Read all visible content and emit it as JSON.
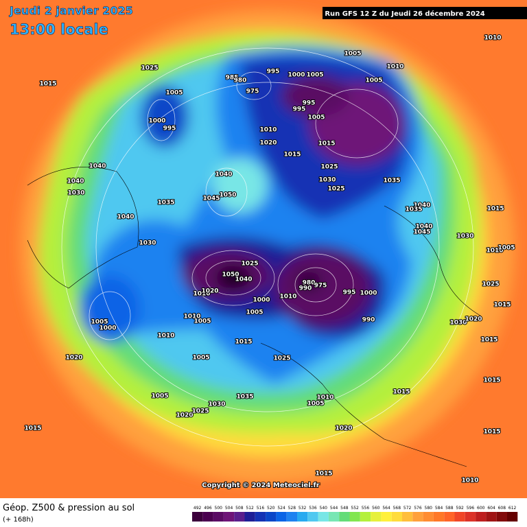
{
  "header": {
    "date": "Jeudi 2 janvier 2025",
    "time": "13:00 locale",
    "run": "Run GFS 12 Z du Jeudi 26 décembre 2024"
  },
  "footer": {
    "title": "Géop. Z500 & pression au sol",
    "lead": "(+ 168h)",
    "copyright": "Copyright © 2024 Meteociel.fr"
  },
  "scale": {
    "ticks": [
      492,
      496,
      500,
      504,
      508,
      512,
      516,
      520,
      524,
      528,
      532,
      536,
      540,
      544,
      548,
      552,
      556,
      560,
      564,
      568,
      572,
      576,
      580,
      584,
      588,
      592,
      596,
      600,
      604,
      608,
      612
    ],
    "colors": [
      "#3c003c",
      "#4b0050",
      "#5a0a64",
      "#6e1478",
      "#5a1e8c",
      "#1e1e96",
      "#1432b4",
      "#0a46c8",
      "#0a64e6",
      "#1e82f0",
      "#28aaf0",
      "#50c8f0",
      "#78e6e6",
      "#78e6b4",
      "#64dc78",
      "#82e650",
      "#b4f03c",
      "#e6f03c",
      "#fff03c",
      "#ffdc3c",
      "#ffbe3c",
      "#ffa03c",
      "#ff8c32",
      "#ff7828",
      "#ff6428",
      "#f04628",
      "#dc3228",
      "#be1e1e",
      "#a01414",
      "#820a0a",
      "#640000"
    ]
  },
  "isobar_labels": [
    1015,
    1025,
    1005,
    1000,
    995,
    985,
    980,
    975,
    995,
    1005,
    1010,
    1010,
    1005,
    1000,
    1005,
    995,
    995,
    1005,
    1010,
    1020,
    1015,
    1015,
    1025,
    1030,
    1025,
    1035,
    1040,
    1040,
    1030,
    1035,
    1040,
    1045,
    1050,
    1040,
    1030,
    1040,
    1035,
    1040,
    1045,
    1015,
    1030,
    1010,
    1005,
    1025,
    1015,
    1030,
    1020,
    1015,
    1025,
    1050,
    1040,
    1010,
    1020,
    1000,
    1005,
    1010,
    1005,
    980,
    990,
    975,
    995,
    1000,
    1010,
    990,
    1005,
    1000,
    1010,
    1015,
    1020,
    1005,
    1025,
    1005,
    1030,
    1020,
    1025,
    1035,
    1010,
    1005,
    1015,
    1020,
    1015,
    1015,
    1015,
    1010,
    1015
  ]
}
